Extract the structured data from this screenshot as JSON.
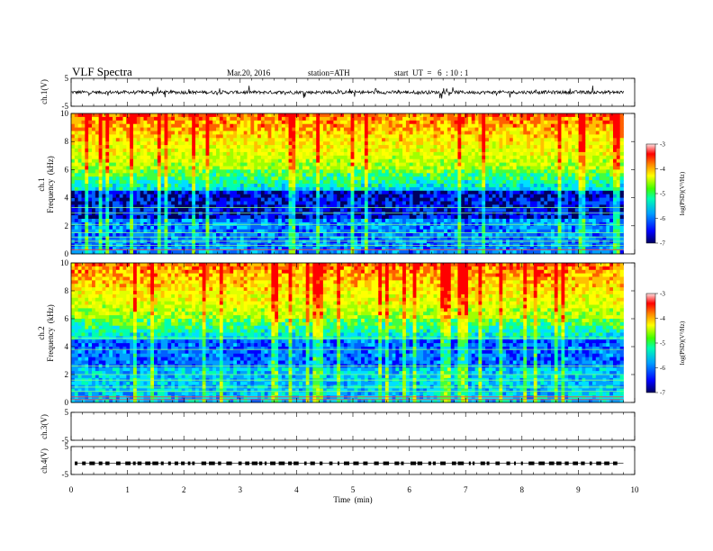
{
  "header": {
    "title": "VLF  Spectra",
    "date": "Mar.20, 2016",
    "station": "station=ATH",
    "start": "start  UT  =   6  : 10 : 1"
  },
  "chart_data": [
    {
      "type": "line",
      "panel": "ch1-waveform",
      "ylabel": "ch.1(V)",
      "ylim": [
        -5,
        5
      ],
      "yticks": [
        "5",
        "-5"
      ],
      "x_range_min": [
        0,
        9.8
      ],
      "baseline": 0,
      "trace_color": "#000000"
    },
    {
      "type": "heatmap",
      "panel": "ch1-spectrogram",
      "ylabel": "ch.1\nFrequency  (kHz)",
      "ylabel_line1": "ch.1",
      "ylabel_line2": "Frequency  (kHz)",
      "ylim": [
        0,
        10
      ],
      "yticks": [
        "0",
        "2",
        "4",
        "6",
        "8",
        "10"
      ],
      "colorbar": {
        "label": "log(PSD)(V²/Hz)",
        "range": [
          -7,
          -3
        ],
        "ticks": [
          "-3",
          "-4",
          "-5",
          "-6",
          "-7"
        ]
      }
    },
    {
      "type": "heatmap",
      "panel": "ch2-spectrogram",
      "ylabel_line1": "ch.2",
      "ylabel_line2": "Frequency  (kHz)",
      "ylim": [
        0,
        10
      ],
      "yticks": [
        "0",
        "2",
        "4",
        "6",
        "8",
        "10"
      ],
      "colorbar": {
        "label": "log(PSD)(V²/Hz)",
        "range": [
          -7,
          -3
        ],
        "ticks": [
          "-3",
          "-4",
          "-5",
          "-6",
          "-7"
        ]
      }
    },
    {
      "type": "line",
      "panel": "ch3-waveform",
      "ylabel": "ch.3(V)",
      "ylim": [
        -5,
        5
      ],
      "yticks": [
        "5",
        "-5"
      ]
    },
    {
      "type": "line",
      "panel": "ch4-waveform",
      "ylabel": "ch.4(V)",
      "ylim": [
        -5,
        5
      ],
      "yticks": [
        "5",
        "-5"
      ],
      "pulse_level": -1
    }
  ],
  "xaxis": {
    "label": "Time  (min)",
    "range": [
      0,
      10
    ],
    "ticks": [
      "0",
      "1",
      "2",
      "3",
      "4",
      "5",
      "6",
      "7",
      "8",
      "9",
      "10"
    ]
  },
  "colors": {
    "colormap": [
      "#000080",
      "#0000ff",
      "#00a0ff",
      "#00ffc0",
      "#40ff00",
      "#c0ff00",
      "#ffff00",
      "#ffa000",
      "#ff0000",
      "#ffb0b0"
    ]
  }
}
